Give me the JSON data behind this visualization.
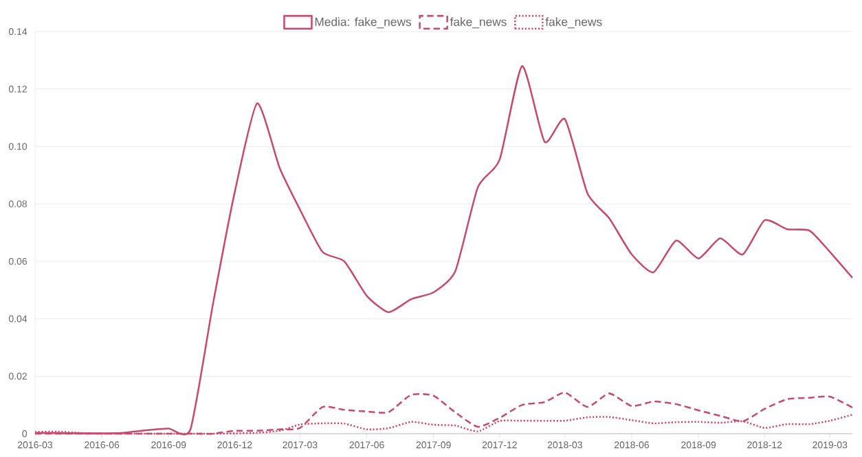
{
  "chart_data": {
    "type": "line",
    "x": [
      "2016-03",
      "2016-04",
      "2016-05",
      "2016-06",
      "2016-07",
      "2016-08",
      "2016-09",
      "2016-10",
      "2016-11",
      "2016-12",
      "2017-01",
      "2017-02",
      "2017-03",
      "2017-04",
      "2017-05",
      "2017-06",
      "2017-07",
      "2017-08",
      "2017-09",
      "2017-10",
      "2017-11",
      "2017-12",
      "2018-01",
      "2018-02",
      "2018-03",
      "2018-04",
      "2018-05",
      "2018-06",
      "2018-07",
      "2018-08",
      "2018-09",
      "2018-10",
      "2018-11",
      "2018-12",
      "2019-01",
      "2019-02",
      "2019-03",
      "2019-04"
    ],
    "series": [
      {
        "name": "Media: fake_news",
        "color": "#c54b6c",
        "line_style": "solid",
        "values": [
          0.0003,
          0.0002,
          0.0001,
          0.0001,
          0.0003,
          0.0012,
          0.0018,
          0.0015,
          0.045,
          0.084,
          0.115,
          0.0925,
          0.078,
          0.0633,
          0.06,
          0.048,
          0.0423,
          0.0468,
          0.0492,
          0.0566,
          0.0858,
          0.0954,
          0.128,
          0.1016,
          0.1095,
          0.0837,
          0.075,
          0.0624,
          0.0562,
          0.0672,
          0.061,
          0.068,
          0.0624,
          0.0743,
          0.0712,
          0.0707,
          0.0633,
          0.0543
        ]
      },
      {
        "name": "fake_news",
        "color": "#c54b6c",
        "line_style": "dashed",
        "values": [
          0,
          0,
          0,
          0,
          0,
          0,
          0,
          0,
          0,
          0.001,
          0.001,
          0.0015,
          0.002,
          0.0093,
          0.0083,
          0.0077,
          0.0075,
          0.0135,
          0.0132,
          0.0074,
          0.0024,
          0.0055,
          0.01,
          0.011,
          0.0143,
          0.0093,
          0.014,
          0.0096,
          0.0112,
          0.0103,
          0.0081,
          0.0062,
          0.0043,
          0.0086,
          0.012,
          0.0125,
          0.0129,
          0.0091
        ]
      },
      {
        "name": "fake_news",
        "color": "#c54b6c",
        "line_style": "dotted",
        "values": [
          0.0006,
          0.0007,
          0.0003,
          0,
          0,
          0,
          0,
          0,
          0,
          0.0001,
          0.0003,
          0.001,
          0.0032,
          0.0036,
          0.0035,
          0.0015,
          0.0019,
          0.0041,
          0.0031,
          0.0028,
          0.0008,
          0.0044,
          0.0045,
          0.0045,
          0.0045,
          0.0057,
          0.0058,
          0.0047,
          0.0036,
          0.004,
          0.0041,
          0.0038,
          0.0043,
          0.002,
          0.0033,
          0.0033,
          0.0045,
          0.0066
        ]
      }
    ],
    "xlim": [
      "2016-03",
      "2019-04"
    ],
    "xticks": [
      "2016-03",
      "2016-06",
      "2016-09",
      "2016-12",
      "2017-03",
      "2017-06",
      "2017-09",
      "2017-12",
      "2018-03",
      "2018-06",
      "2018-09",
      "2018-12",
      "2019-03"
    ],
    "ylim": [
      0,
      0.14
    ],
    "yticks": [
      0,
      0.02,
      0.04,
      0.06,
      0.08,
      {
        "value": 0.1,
        "label": "0.10"
      },
      0.12,
      0.14
    ],
    "grid": "y",
    "legend": "top",
    "marker": "none"
  }
}
